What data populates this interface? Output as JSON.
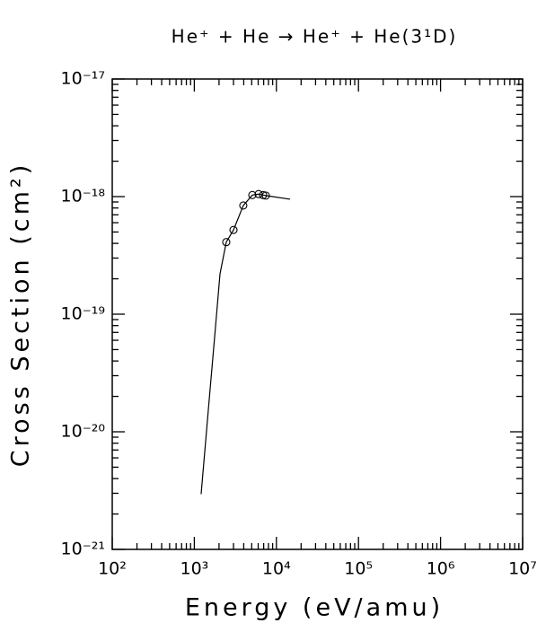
{
  "chart_data": {
    "type": "line",
    "title": "He⁺ + He → He⁺ + He(3¹D)",
    "xlabel": "Energy (eV/amu)",
    "ylabel": "Cross Section (cm²)",
    "xscale": "log",
    "yscale": "log",
    "xlim": [
      100,
      10000000
    ],
    "ylim": [
      1e-21,
      1e-17
    ],
    "xticks": [
      {
        "value": 100,
        "label": "10²"
      },
      {
        "value": 1000,
        "label": "10³"
      },
      {
        "value": 10000,
        "label": "10⁴"
      },
      {
        "value": 100000,
        "label": "10⁵"
      },
      {
        "value": 1000000,
        "label": "10⁶"
      },
      {
        "value": 10000000,
        "label": "10⁷"
      }
    ],
    "yticks": [
      {
        "value": 1e-21,
        "label": "10⁻²¹"
      },
      {
        "value": 1e-20,
        "label": "10⁻²⁰"
      },
      {
        "value": 1e-19,
        "label": "10⁻¹⁹"
      },
      {
        "value": 1e-18,
        "label": "10⁻¹⁸"
      },
      {
        "value": 1e-17,
        "label": "10⁻¹⁷"
      }
    ],
    "minor_ticks": true,
    "color": "#000000",
    "line": {
      "x": [
        1210,
        1500,
        1800,
        2055,
        2450,
        3000,
        3950,
        5090,
        6070,
        7430,
        14700
      ],
      "y": [
        2.95e-21,
        1.7e-20,
        7.4e-20,
        2.2e-19,
        4.1e-19,
        5.2e-19,
        8.4e-19,
        1.03e-18,
        1.05e-18,
        1.02e-18,
        9.5e-19
      ]
    },
    "points": {
      "x": [
        2450,
        3000,
        3950,
        5090,
        6070,
        6890,
        7430
      ],
      "y": [
        4.1e-19,
        5.2e-19,
        8.4e-19,
        1.03e-18,
        1.05e-18,
        1.03e-18,
        1.02e-18
      ]
    }
  }
}
